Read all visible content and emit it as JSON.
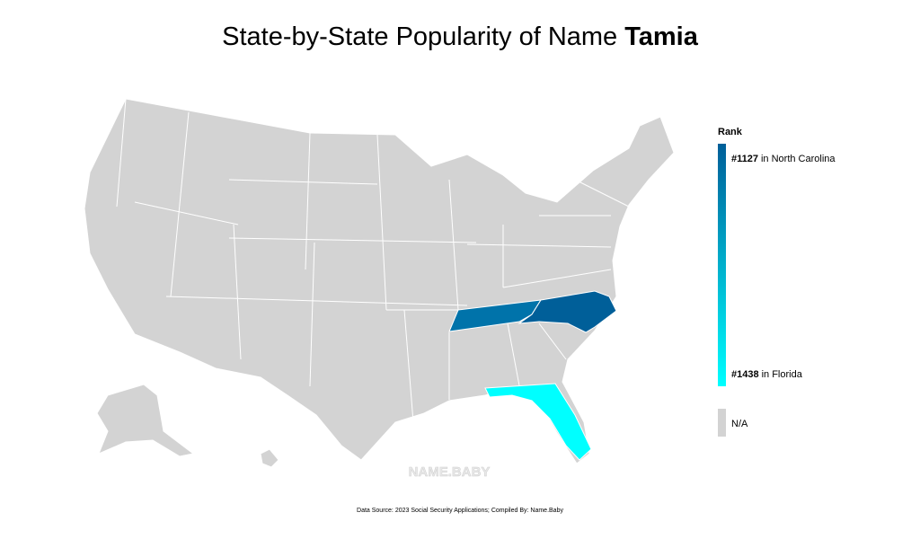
{
  "title": {
    "text": "State-by-State Popularity of Name",
    "name": "Tamia"
  },
  "legend": {
    "title": "Rank",
    "top": {
      "rank": "#1127",
      "state": "in North Carolina"
    },
    "bottom": {
      "rank": "#1438",
      "state": "in Florida"
    },
    "na": "N/A"
  },
  "watermark": "NAME.BABY",
  "source": "Data Source: 2023 Social Security Applications; Compiled By: Name.Baby"
}
